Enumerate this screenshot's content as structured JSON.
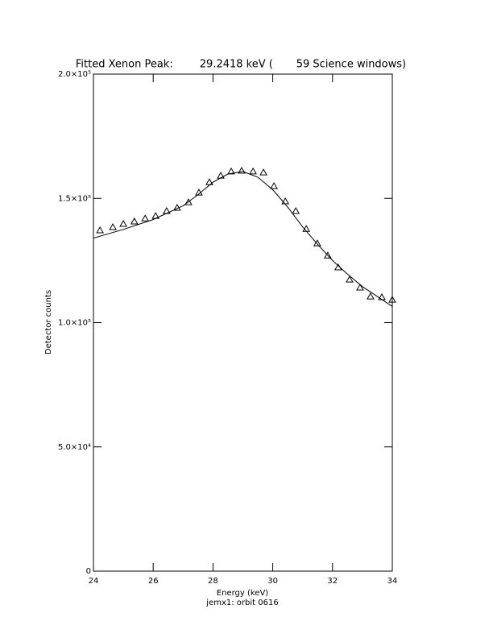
{
  "chart_data": {
    "type": "scatter",
    "title": "Fitted Xenon Peak:        29.2418 keV (       59 Science windows)",
    "xlabel": "Energy (keV)",
    "ylabel": "Detector counts",
    "footnote": "jemx1: orbit 0616",
    "xlim": [
      24,
      34
    ],
    "ylim": [
      0,
      200000
    ],
    "xticks": [
      24,
      26,
      28,
      30,
      32,
      34
    ],
    "yticks": [
      0,
      {
        "value": 50000,
        "label": "5.0×10⁴"
      },
      {
        "value": 100000,
        "label": "1.0×10⁵"
      },
      {
        "value": 150000,
        "label": "1.5×10⁵"
      },
      {
        "value": 200000,
        "label": "2.0×10⁵"
      }
    ],
    "color": "#000000",
    "series": [
      {
        "style": "markers",
        "x": [
          24.22,
          24.65,
          25.0,
          25.37,
          25.73,
          26.08,
          26.45,
          26.8,
          27.18,
          27.53,
          27.88,
          28.26,
          28.61,
          28.96,
          29.34,
          29.69,
          30.04,
          30.42,
          30.77,
          31.12,
          31.49,
          31.84,
          32.19,
          32.57,
          32.92,
          33.27,
          33.65,
          34.0
        ],
        "values": [
          137100,
          138400,
          139700,
          140700,
          141900,
          142900,
          144900,
          146200,
          148400,
          152300,
          156500,
          159100,
          160800,
          161100,
          160800,
          160400,
          154900,
          148800,
          144900,
          137700,
          131900,
          127000,
          122200,
          117300,
          114100,
          110500,
          110200,
          109200
        ]
      },
      {
        "style": "line",
        "x": [
          24,
          25,
          26,
          27,
          27.5,
          28,
          28.5,
          29,
          29.5,
          30,
          30.5,
          31,
          31.5,
          32,
          32.5,
          33,
          33.5,
          34
        ],
        "values": [
          134000,
          137500,
          141500,
          147000,
          151500,
          156500,
          159800,
          160800,
          158500,
          153500,
          146500,
          138500,
          131500,
          125000,
          119500,
          114500,
          110500,
          106500
        ]
      }
    ]
  }
}
